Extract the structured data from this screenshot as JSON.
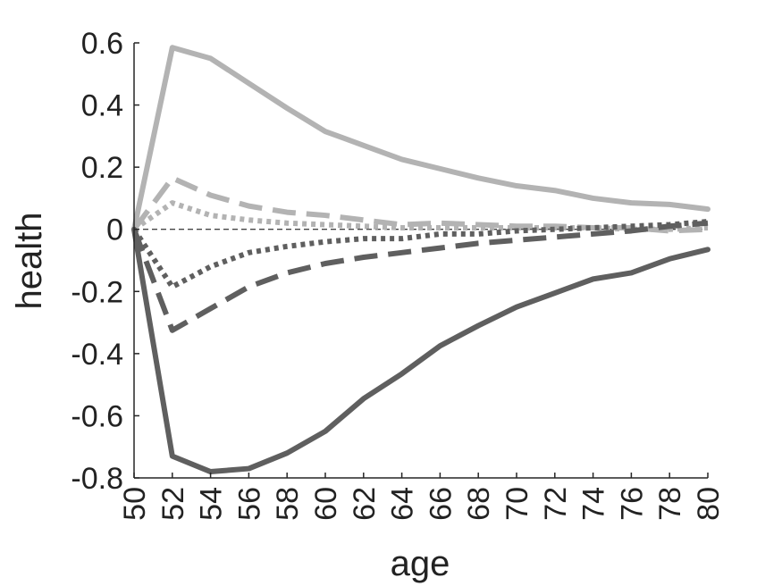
{
  "chart_data": {
    "type": "line",
    "title": "",
    "xlabel": "age",
    "ylabel": "health",
    "xlim": [
      50,
      80
    ],
    "ylim": [
      -0.8,
      0.6
    ],
    "x_ticks": [
      "50",
      "52",
      "54",
      "56",
      "58",
      "60",
      "62",
      "64",
      "66",
      "68",
      "70",
      "72",
      "74",
      "76",
      "78",
      "80"
    ],
    "y_ticks": [
      "0.6",
      "0.4",
      "0.2",
      "0",
      "-0.2",
      "-0.4",
      "-0.6",
      "-0.8"
    ],
    "grid": false,
    "zero_reference_line": true,
    "x": [
      50,
      52,
      54,
      56,
      58,
      60,
      62,
      64,
      66,
      68,
      70,
      72,
      74,
      76,
      78,
      80
    ],
    "series": [
      {
        "color": "#b3b3b3",
        "dash": "solid",
        "values": [
          0,
          0.585,
          0.55,
          0.47,
          0.39,
          0.315,
          0.27,
          0.225,
          0.195,
          0.165,
          0.14,
          0.125,
          0.1,
          0.085,
          0.08,
          0.065
        ]
      },
      {
        "color": "#b3b3b3",
        "dash": "dashed",
        "values": [
          0,
          0.165,
          0.11,
          0.075,
          0.055,
          0.045,
          0.03,
          0.015,
          0.02,
          0.015,
          0.01,
          0.01,
          0.005,
          0.005,
          -0.005,
          0.0
        ]
      },
      {
        "color": "#b3b3b3",
        "dash": "dotted",
        "values": [
          0,
          0.085,
          0.045,
          0.03,
          0.02,
          0.015,
          0.01,
          0.005,
          0.005,
          0.005,
          0.005,
          0.005,
          0.005,
          0.0,
          0.0,
          0.005
        ]
      },
      {
        "color": "#5f5f5f",
        "dash": "dotted",
        "values": [
          0,
          -0.185,
          -0.12,
          -0.075,
          -0.055,
          -0.04,
          -0.03,
          -0.03,
          -0.015,
          -0.015,
          -0.005,
          0.0,
          0.005,
          0.01,
          0.015,
          0.025
        ]
      },
      {
        "color": "#5f5f5f",
        "dash": "dashed",
        "values": [
          0,
          -0.325,
          -0.255,
          -0.185,
          -0.14,
          -0.11,
          -0.09,
          -0.075,
          -0.06,
          -0.045,
          -0.035,
          -0.025,
          -0.015,
          -0.005,
          0.01,
          0.02
        ]
      },
      {
        "color": "#5f5f5f",
        "dash": "solid",
        "values": [
          0,
          -0.73,
          -0.78,
          -0.77,
          -0.72,
          -0.65,
          -0.545,
          -0.465,
          -0.375,
          -0.31,
          -0.25,
          -0.205,
          -0.16,
          -0.14,
          -0.095,
          -0.065
        ]
      }
    ]
  }
}
